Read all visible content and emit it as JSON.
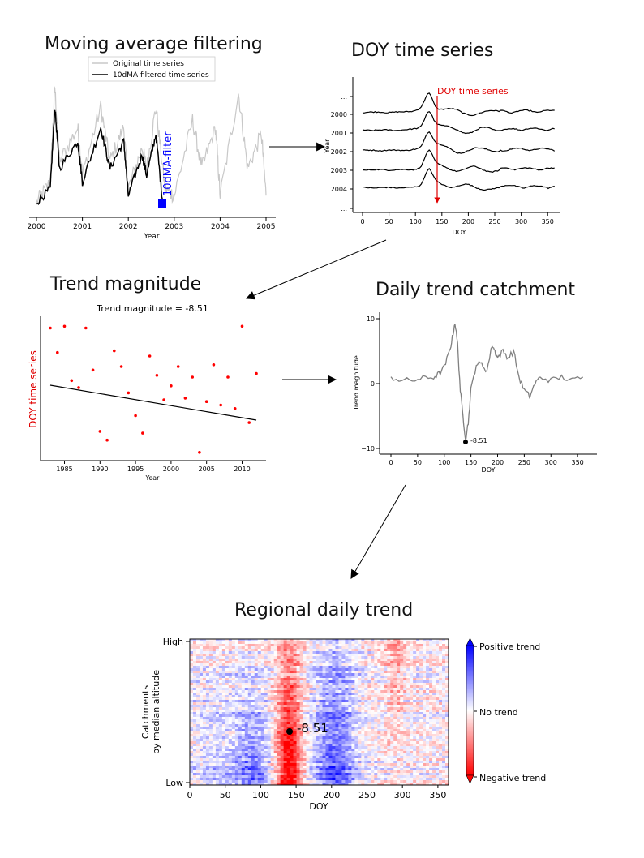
{
  "titles": {
    "moving_average": "Moving average filtering",
    "doy_series": "DOY time series",
    "trend_magnitude": "Trend magnitude",
    "daily_trend": "Daily trend catchment",
    "regional": "Regional daily trend"
  },
  "panel_ma": {
    "legend": [
      "Original time series",
      "10dMA filtered time series"
    ],
    "filter_label": "10dMA-filter",
    "xlabel": "Year",
    "xticks": [
      "2000",
      "2001",
      "2002",
      "2003",
      "2004",
      "2005"
    ],
    "colors": {
      "original": "#c8c8c8",
      "filtered": "#000000",
      "marker": "#0000ff"
    }
  },
  "panel_doy": {
    "annotation": "DOY time series",
    "ylabel": "Year",
    "xlabel": "DOY",
    "yticks": [
      "...",
      "2000",
      "2001",
      "2002",
      "2003",
      "2004",
      "..."
    ],
    "xticks": [
      "0",
      "50",
      "100",
      "150",
      "200",
      "250",
      "300",
      "350"
    ],
    "arrow_doy": 140,
    "colors": {
      "annotation": "#e00000"
    }
  },
  "panel_trend": {
    "subtitle": "Trend magnitude = -8.51",
    "ylabel": "DOY time series",
    "xlabel": "Year",
    "xticks": [
      "1985",
      "1990",
      "1995",
      "2000",
      "2005",
      "2010"
    ],
    "colors": {
      "points": "#ff0000",
      "ylabel": "#e00000",
      "line": "#000000"
    }
  },
  "panel_daily": {
    "ylabel": "Trend magnitude",
    "xlabel": "DOY",
    "yticks": [
      "10",
      "0",
      "−10"
    ],
    "xticks": [
      "0",
      "50",
      "100",
      "150",
      "200",
      "250",
      "300",
      "350"
    ],
    "point_label": "-8.51",
    "colors": {
      "line": "#808080",
      "point": "#000000"
    }
  },
  "panel_regional": {
    "ylabel_line1": "Catchments",
    "ylabel_line2": "by median altitude",
    "yticks": [
      "High",
      "Low"
    ],
    "xlabel": "DOY",
    "xticks": [
      "0",
      "50",
      "100",
      "150",
      "200",
      "250",
      "300",
      "350"
    ],
    "point_label": "-8.51",
    "colorbar": [
      "Positive trend",
      "No trend",
      "Negative trend"
    ],
    "colors": {
      "positive": "#0000ff",
      "neutral": "#ffffff",
      "negative": "#ff0000"
    }
  },
  "chart_data": [
    {
      "type": "line",
      "title": "Moving average filtering",
      "xlabel": "Year",
      "xlim": [
        2000,
        2005
      ],
      "series": [
        {
          "name": "Original time series",
          "x": [
            2000.0,
            2000.3,
            2000.4,
            2000.5,
            2000.9,
            2001.0,
            2001.4,
            2001.6,
            2001.9,
            2002.0,
            2002.3,
            2002.4,
            2002.6,
            2002.8,
            2003.0,
            2003.4,
            2003.6,
            2003.9,
            2004.0,
            2004.4,
            2004.6,
            2004.9,
            2005.0
          ],
          "y": [
            0.05,
            0.2,
            0.9,
            0.35,
            0.6,
            0.25,
            0.75,
            0.35,
            0.6,
            0.15,
            0.45,
            0.3,
            0.75,
            0.15,
            0.1,
            0.65,
            0.3,
            0.6,
            0.1,
            0.85,
            0.3,
            0.55,
            0.1
          ]
        },
        {
          "name": "10dMA filtered time series",
          "x": [
            2000.0,
            2000.3,
            2000.4,
            2000.5,
            2000.9,
            2001.0,
            2001.4,
            2001.6,
            2001.9,
            2002.0,
            2002.3,
            2002.4,
            2002.6,
            2002.75
          ],
          "y": [
            0.05,
            0.15,
            0.75,
            0.3,
            0.5,
            0.2,
            0.6,
            0.3,
            0.5,
            0.1,
            0.4,
            0.25,
            0.55,
            0.05
          ]
        }
      ]
    },
    {
      "type": "scatter",
      "title": "Trend magnitude = -8.51",
      "xlabel": "Year",
      "ylabel": "DOY time series",
      "x": [
        1983,
        1984,
        1985,
        1986,
        1987,
        1988,
        1989,
        1990,
        1991,
        1992,
        1993,
        1994,
        1995,
        1996,
        1997,
        1998,
        1999,
        2000,
        2001,
        2002,
        2003,
        2004,
        2005,
        2006,
        2007,
        2008,
        2009,
        2010,
        2011,
        2012
      ],
      "y": [
        152,
        138,
        153,
        122,
        118,
        152,
        128,
        93,
        88,
        139,
        130,
        115,
        102,
        92,
        136,
        125,
        111,
        119,
        130,
        112,
        124,
        81,
        110,
        131,
        108,
        124,
        106,
        153,
        98,
        126
      ],
      "trend_slope": -8.51
    },
    {
      "type": "line",
      "title": "",
      "xlabel": "DOY",
      "ylabel": "Trend magnitude",
      "ylim": [
        -10,
        10
      ],
      "x": [
        0,
        20,
        40,
        60,
        80,
        90,
        100,
        110,
        115,
        120,
        125,
        130,
        135,
        140,
        145,
        150,
        160,
        170,
        180,
        190,
        195,
        200,
        210,
        220,
        230,
        240,
        250,
        260,
        270,
        280,
        300,
        320,
        340,
        360
      ],
      "y": [
        1,
        0.5,
        0.5,
        0.8,
        1,
        1.5,
        2.5,
        5,
        7,
        9.5,
        6,
        -1,
        -5,
        -8.51,
        -6,
        -1,
        3,
        3,
        2,
        6,
        5,
        4,
        5,
        4,
        5,
        1,
        -1,
        -2,
        0,
        1,
        0.5,
        1,
        0.5,
        1
      ],
      "highlight": {
        "x": 140,
        "y": -8.51,
        "label": "-8.51"
      }
    },
    {
      "type": "heatmap",
      "title": "Regional daily trend",
      "xlabel": "DOY",
      "ylabel": "Catchments by median altitude",
      "xlim": [
        0,
        365
      ],
      "y_categories": [
        "High",
        "Low"
      ],
      "colorbar": [
        "Positive trend",
        "No trend",
        "Negative trend"
      ],
      "highlight": {
        "x": 140,
        "label": "-8.51"
      }
    }
  ]
}
